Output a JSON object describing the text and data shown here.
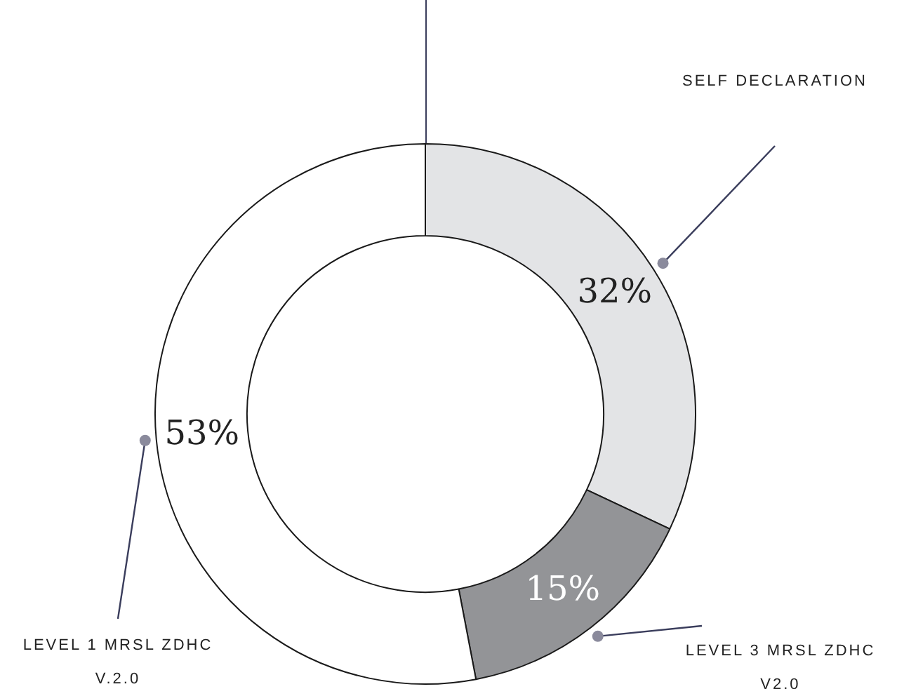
{
  "chart_data": {
    "type": "donut",
    "categories": [
      "SELF DECLARATION",
      "LEVEL 3 MRSL ZDHC V2.0",
      "LEVEL 1 MRSL ZDHC V.2.0"
    ],
    "values": [
      32,
      15,
      53
    ],
    "colors": [
      "#e3e4e6",
      "#939497",
      "#ffffff"
    ],
    "value_labels": [
      "32%",
      "15%",
      "53%"
    ],
    "legend": false
  }
}
